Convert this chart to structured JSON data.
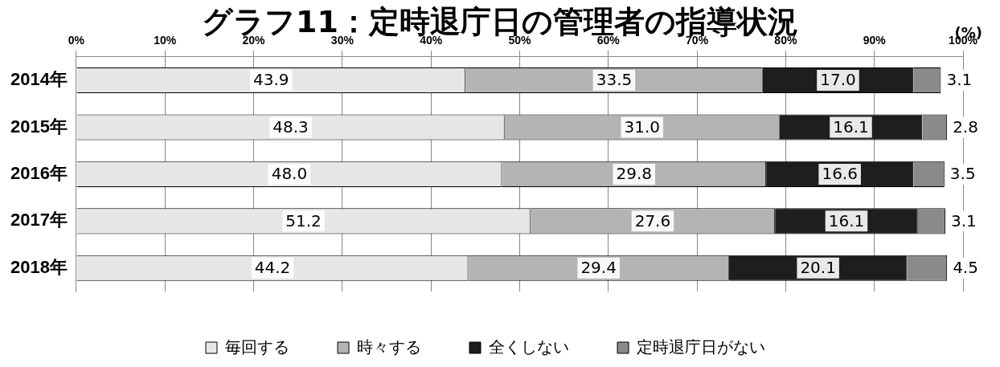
{
  "chart_data": {
    "type": "bar",
    "orientation": "horizontal",
    "stacked": true,
    "title": "グラフ11：定時退庁日の管理者の指導状況",
    "annotations": [
      "(%)"
    ],
    "categories": [
      "2014年",
      "2015年",
      "2016年",
      "2017年",
      "2018年"
    ],
    "series": [
      {
        "name": "毎回する",
        "color": "#e6e6e6",
        "values": [
          43.9,
          48.3,
          48.0,
          51.2,
          44.2
        ],
        "value_labels": [
          "43.9",
          "48.3",
          "48.0",
          "51.2",
          "44.2"
        ]
      },
      {
        "name": "時々する",
        "color": "#b4b4b4",
        "values": [
          33.5,
          31.0,
          29.8,
          27.6,
          29.4
        ],
        "value_labels": [
          "33.5",
          "31.0",
          "29.8",
          "27.6",
          "29.4"
        ]
      },
      {
        "name": "全くしない",
        "color": "#1e1e1e",
        "values": [
          17.0,
          16.1,
          16.6,
          16.1,
          20.1
        ],
        "value_labels": [
          "17.0",
          "16.1",
          "16.6",
          "16.1",
          "20.1"
        ]
      },
      {
        "name": "定時退庁日がない",
        "color": "#8a8a8a",
        "values": [
          3.1,
          2.8,
          3.5,
          3.1,
          4.5
        ],
        "value_labels": [
          "3.1",
          "2.8",
          "3.5",
          "3.1",
          "4.5"
        ]
      }
    ],
    "xlim": [
      0,
      100
    ],
    "xticks": [
      {
        "value": 0,
        "label": "0%"
      },
      {
        "value": 10,
        "label": "10%"
      },
      {
        "value": 20,
        "label": "20%"
      },
      {
        "value": 30,
        "label": "30%"
      },
      {
        "value": 40,
        "label": "40%"
      },
      {
        "value": 50,
        "label": "50%"
      },
      {
        "value": 60,
        "label": "60%"
      },
      {
        "value": 70,
        "label": "70%"
      },
      {
        "value": 80,
        "label": "80%"
      },
      {
        "value": 90,
        "label": "90%"
      },
      {
        "value": 100,
        "label": "100%"
      }
    ],
    "grid": "x",
    "legend": "bottom"
  }
}
